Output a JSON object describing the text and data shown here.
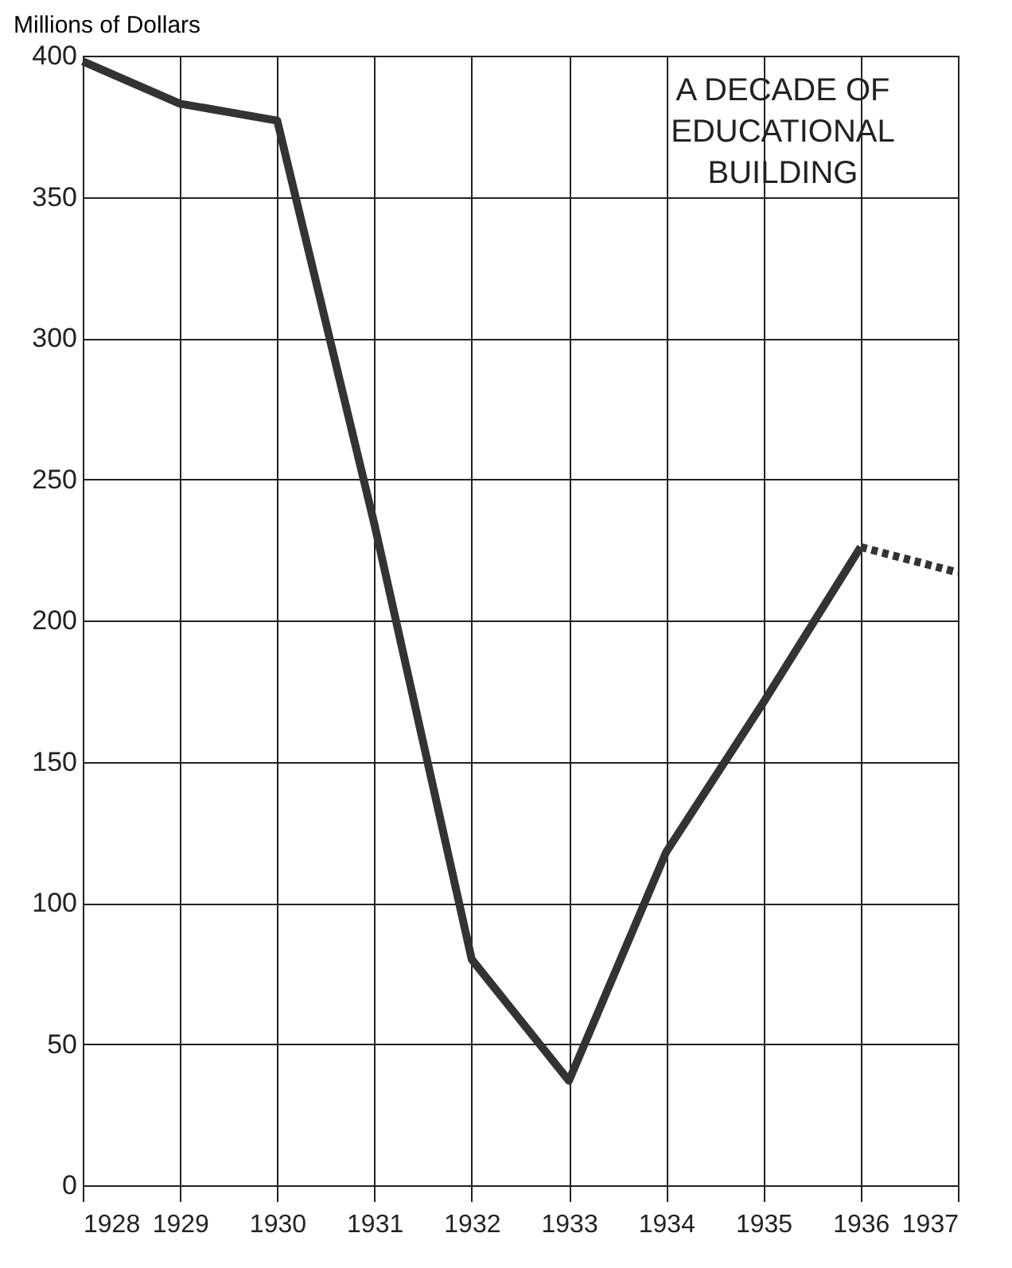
{
  "chart_data": {
    "type": "line",
    "title": "A DECADE OF EDUCATIONAL BUILDING",
    "ylabel": "Millions of Dollars",
    "series": [
      {
        "color": "#333333",
        "line_style": "solid",
        "x": [
          1928,
          1929,
          1930,
          1931,
          1932,
          1933,
          1934,
          1935,
          1936
        ],
        "values": [
          398,
          383,
          377,
          234,
          80,
          37,
          118,
          171,
          226
        ]
      },
      {
        "color": "#333333",
        "line_style": "dotted",
        "x": [
          1936,
          1937
        ],
        "values": [
          226,
          217
        ]
      }
    ],
    "xlim": [
      1928,
      1937
    ],
    "xticks": [
      1928,
      1929,
      1930,
      1931,
      1932,
      1933,
      1934,
      1935,
      1936,
      1937
    ],
    "ylim": [
      0,
      400
    ],
    "yticks": [
      0,
      50,
      100,
      150,
      200,
      250,
      300,
      350,
      400
    ],
    "grid": true,
    "marker": "none"
  }
}
